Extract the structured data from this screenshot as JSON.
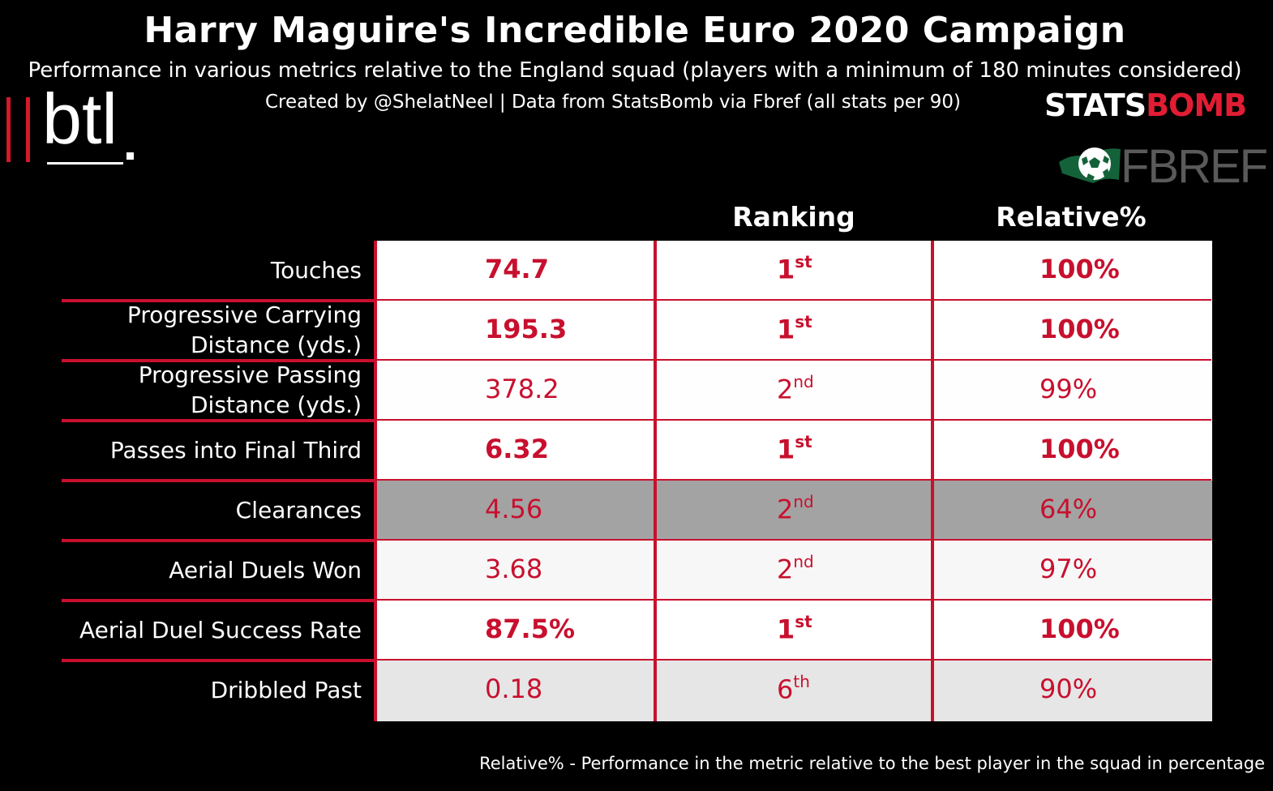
{
  "title": "Harry Maguire's Incredible Euro 2020 Campaign",
  "subtitle": "Performance in various metrics relative to the England squad (players with a minimum of 180 minutes considered)",
  "credit": "Created by @ShelatNeel | Data from StatsBomb via Fbref (all stats per 90)",
  "logos": {
    "btl": "btl",
    "statsbomb_part1": "STATS",
    "statsbomb_part2": "BOMB",
    "fbref": "FBREF"
  },
  "footnote": "Relative% - Performance in the metric relative to the best player in the squad in percentage",
  "colors": {
    "background": "#000000",
    "accent_red": "#c8102e",
    "text": "#ffffff"
  },
  "chart_data": {
    "type": "table",
    "columns": [
      "",
      "Ranking",
      "Relative%"
    ],
    "rows": [
      {
        "metric": "Touches",
        "value": "74.7",
        "rank": "1",
        "rank_suffix": "st",
        "relative": "100%",
        "relative_pct": 100,
        "best": true,
        "shade": "#ffffff"
      },
      {
        "metric": "Progressive Carrying Distance (yds.)",
        "metric_lines": [
          "Progressive Carrying",
          "Distance (yds.)"
        ],
        "value": "195.3",
        "rank": "1",
        "rank_suffix": "st",
        "relative": "100%",
        "relative_pct": 100,
        "best": true,
        "shade": "#ffffff"
      },
      {
        "metric": "Progressive Passing Distance (yds.)",
        "metric_lines": [
          "Progressive Passing",
          "Distance (yds.)"
        ],
        "value": "378.2",
        "rank": "2",
        "rank_suffix": "nd",
        "relative": "99%",
        "relative_pct": 99,
        "best": false,
        "shade": "#fefefe"
      },
      {
        "metric": "Passes into Final Third",
        "value": "6.32",
        "rank": "1",
        "rank_suffix": "st",
        "relative": "100%",
        "relative_pct": 100,
        "best": true,
        "shade": "#ffffff"
      },
      {
        "metric": "Clearances",
        "value": "4.56",
        "rank": "2",
        "rank_suffix": "nd",
        "relative": "64%",
        "relative_pct": 64,
        "best": false,
        "shade": "#a3a3a3"
      },
      {
        "metric": "Aerial Duels Won",
        "value": "3.68",
        "rank": "2",
        "rank_suffix": "nd",
        "relative": "97%",
        "relative_pct": 97,
        "best": false,
        "shade": "#f7f7f7"
      },
      {
        "metric": "Aerial Duel Success Rate",
        "value": "87.5%",
        "rank": "1",
        "rank_suffix": "st",
        "relative": "100%",
        "relative_pct": 100,
        "best": true,
        "shade": "#ffffff"
      },
      {
        "metric": "Dribbled Past",
        "value": "0.18",
        "rank": "6",
        "rank_suffix": "th",
        "relative": "90%",
        "relative_pct": 90,
        "best": false,
        "shade": "#e6e6e6"
      }
    ]
  }
}
